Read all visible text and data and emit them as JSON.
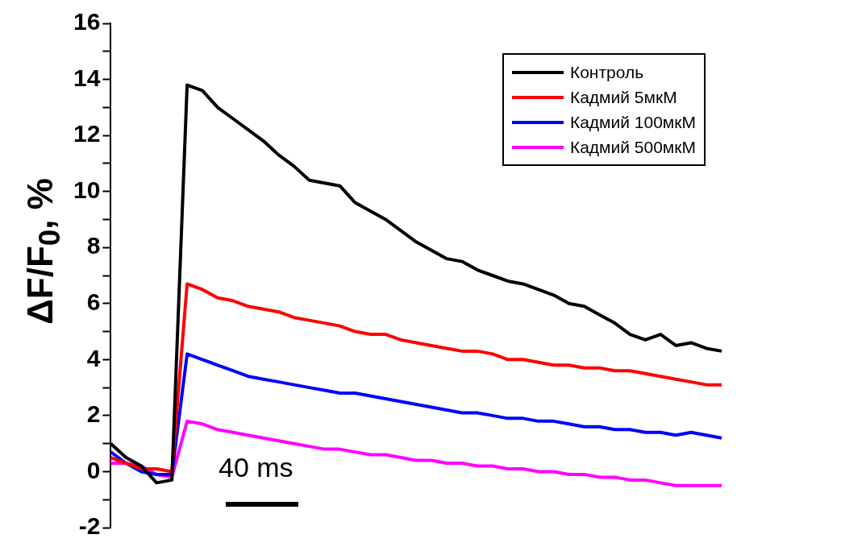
{
  "chart_data": {
    "type": "line",
    "ylabel": "ΔF/F$_{0}$, %",
    "annotations": [
      "40 ms"
    ],
    "categories": [
      null,
      null,
      null,
      null,
      null,
      null,
      null,
      null,
      null,
      null,
      null,
      null,
      null,
      null,
      null,
      null,
      null,
      null,
      null,
      null,
      null,
      null,
      null,
      null,
      null,
      null,
      null,
      null,
      null,
      null,
      null,
      null,
      null,
      null,
      null,
      null,
      null,
      null,
      null,
      null,
      null
    ],
    "series": [
      {
        "name": "Контроль",
        "color": "#000000",
        "values": [
          1.0,
          0.5,
          0.2,
          -0.4,
          -0.3,
          13.8,
          13.6,
          13.0,
          12.6,
          12.2,
          11.8,
          11.3,
          10.9,
          10.4,
          10.3,
          10.2,
          9.6,
          9.3,
          9.0,
          8.6,
          8.2,
          7.9,
          7.6,
          7.5,
          7.2,
          7.0,
          6.8,
          6.7,
          6.5,
          6.3,
          6.0,
          5.9,
          5.6,
          5.3,
          4.9,
          4.7,
          4.9,
          4.5,
          4.6,
          4.4,
          4.3
        ]
      },
      {
        "name": "Кадмий 5мкМ",
        "color": "#ff0000",
        "values": [
          0.5,
          0.3,
          0.1,
          0.1,
          0.0,
          6.7,
          6.5,
          6.2,
          6.1,
          5.9,
          5.8,
          5.7,
          5.5,
          5.4,
          5.3,
          5.2,
          5.0,
          4.9,
          4.9,
          4.7,
          4.6,
          4.5,
          4.4,
          4.3,
          4.3,
          4.2,
          4.0,
          4.0,
          3.9,
          3.8,
          3.8,
          3.7,
          3.7,
          3.6,
          3.6,
          3.5,
          3.4,
          3.3,
          3.2,
          3.1,
          3.1
        ]
      },
      {
        "name": "Кадмий 100мкМ",
        "color": "#0000ff",
        "values": [
          0.7,
          0.3,
          0.0,
          -0.1,
          -0.1,
          4.2,
          4.0,
          3.8,
          3.6,
          3.4,
          3.3,
          3.2,
          3.1,
          3.0,
          2.9,
          2.8,
          2.8,
          2.7,
          2.6,
          2.5,
          2.4,
          2.3,
          2.2,
          2.1,
          2.1,
          2.0,
          1.9,
          1.9,
          1.8,
          1.8,
          1.7,
          1.6,
          1.6,
          1.5,
          1.5,
          1.4,
          1.4,
          1.3,
          1.4,
          1.3,
          1.2
        ]
      },
      {
        "name": "Кадмий 500мкМ",
        "color": "#ff00ff",
        "values": [
          0.3,
          0.3,
          0.2,
          -0.1,
          -0.2,
          1.8,
          1.7,
          1.5,
          1.4,
          1.3,
          1.2,
          1.1,
          1.0,
          0.9,
          0.8,
          0.8,
          0.7,
          0.6,
          0.6,
          0.5,
          0.4,
          0.4,
          0.3,
          0.3,
          0.2,
          0.2,
          0.1,
          0.1,
          0.0,
          0.0,
          -0.1,
          -0.1,
          -0.2,
          -0.2,
          -0.3,
          -0.3,
          -0.4,
          -0.5,
          -0.5,
          -0.5,
          -0.5
        ]
      }
    ],
    "ylim": [
      -2,
      16
    ],
    "yticks": [
      -2,
      {
        "value": -1,
        "label": null
      },
      0,
      {
        "value": 1,
        "label": null
      },
      2,
      {
        "value": 3,
        "label": null
      },
      4,
      {
        "value": 5,
        "label": null
      },
      6,
      {
        "value": 7,
        "label": null
      },
      8,
      {
        "value": 9,
        "label": null
      },
      10,
      {
        "value": 11,
        "label": null
      },
      12,
      {
        "value": 13,
        "label": null
      },
      14,
      {
        "value": 15,
        "label": null
      },
      16
    ],
    "tick_labels": "y",
    "grid": false,
    "legend": "top right",
    "marker": "none",
    "line_style": "solid"
  }
}
